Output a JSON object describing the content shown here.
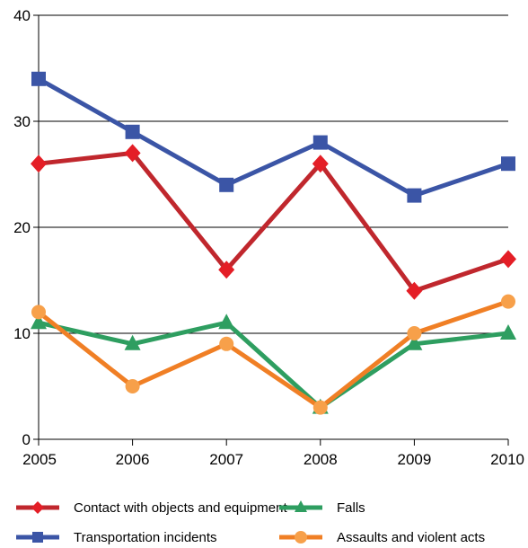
{
  "chart_data": {
    "type": "line",
    "title": "",
    "xlabel": "",
    "ylabel": "",
    "x": [
      "2005",
      "2006",
      "2007",
      "2008",
      "2009",
      "2010"
    ],
    "ylim": [
      0,
      40
    ],
    "yticks": [
      0,
      10,
      20,
      30,
      40
    ],
    "grid": "horizontal",
    "legend_position": "bottom",
    "series": [
      {
        "name": "Contact with objects and equipment",
        "color": "#e41e26",
        "line_color": "#c0272d",
        "marker": "diamond",
        "values": [
          26,
          27,
          16,
          26,
          14,
          17
        ]
      },
      {
        "name": "Falls",
        "color": "#2e9e60",
        "line_color": "#2e9e60",
        "marker": "triangle",
        "values": [
          11,
          9,
          11,
          3,
          9,
          10
        ]
      },
      {
        "name": "Transportation incidents",
        "color": "#3b55a6",
        "line_color": "#3b55a6",
        "marker": "square",
        "values": [
          34,
          29,
          24,
          28,
          23,
          26
        ]
      },
      {
        "name": "Assaults and violent acts",
        "color": "#f7a04a",
        "line_color": "#f07f25",
        "marker": "circle",
        "values": [
          12,
          5,
          9,
          3,
          10,
          13
        ]
      }
    ]
  }
}
